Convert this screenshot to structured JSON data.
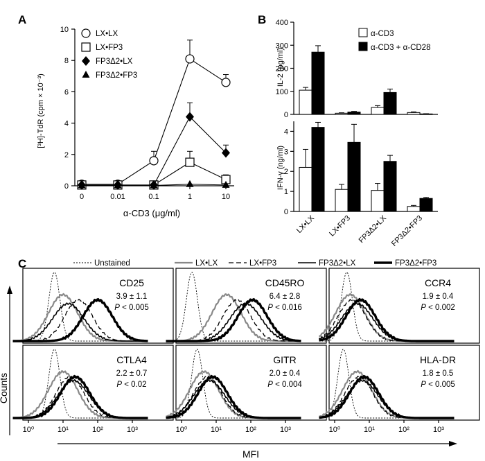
{
  "panelA": {
    "letter": "A",
    "ylabel": "[³H]-TdR (cpm × 10⁻³)",
    "xlabel": "α-CD3 (μg/ml)"
  },
  "panelB": {
    "letter": "B",
    "legend": [
      "α-CD3",
      "α-CD3 + α-CD28"
    ],
    "top_ylabel": "IL-2 (pg/ml)",
    "bottom_ylabel": "IFN-γ (ng/ml)"
  },
  "panelC": {
    "letter": "C",
    "legend": [
      "Unstained",
      "LX•LX",
      "LX•FP3",
      "FP3Δ2•LX",
      "FP3Δ2•FP3"
    ],
    "ylabel": "Counts",
    "xlabel": "MFI",
    "histograms": [
      {
        "marker": "CD25",
        "stat": "3.9 ± 1.1",
        "p_prefix": "P",
        "p_value": " < 0.005"
      },
      {
        "marker": "CD45RO",
        "stat": "6.4 ± 2.8",
        "p_prefix": "P",
        "p_value": " < 0.016"
      },
      {
        "marker": "CCR4",
        "stat": "1.9 ± 0.4",
        "p_prefix": "P",
        "p_value": " < 0.002"
      },
      {
        "marker": "CTLA4",
        "stat": "2.2 ± 0.7",
        "p_prefix": "P",
        "p_value": " < 0.02"
      },
      {
        "marker": "GITR",
        "stat": "2.0 ± 0.4",
        "p_prefix": "P",
        "p_value": " < 0.004"
      },
      {
        "marker": "HLA-DR",
        "stat": "1.8 ± 0.5",
        "p_prefix": "P",
        "p_value": " < 0.005"
      }
    ]
  },
  "chart_data": [
    {
      "id": "A",
      "type": "line",
      "xlabel": "α-CD3 (μg/ml)",
      "ylabel": "[³H]-TdR (cpm × 10⁻³)",
      "x": [
        "0",
        "0.01",
        "0.1",
        "1",
        "10"
      ],
      "ylim": [
        0,
        10
      ],
      "yticks": [
        0,
        2,
        4,
        6,
        8,
        10
      ],
      "legend_position": "top-left",
      "series": [
        {
          "name": "LX•LX",
          "marker": "open-circle",
          "values": [
            0.1,
            0.1,
            1.6,
            8.1,
            6.6
          ],
          "errors": [
            0.1,
            0.1,
            0.6,
            1.2,
            0.5
          ]
        },
        {
          "name": "LX•FP3",
          "marker": "open-square",
          "values": [
            0.05,
            0.05,
            0.05,
            1.5,
            0.4
          ],
          "errors": [
            0.05,
            0.05,
            0.05,
            0.7,
            0.3
          ]
        },
        {
          "name": "FP3Δ2•LX",
          "marker": "filled-diamond",
          "values": [
            0.05,
            0.05,
            0.05,
            4.4,
            2.1
          ],
          "errors": [
            0.05,
            0.05,
            0.05,
            0.9,
            0.5
          ]
        },
        {
          "name": "FP3Δ2•FP3",
          "marker": "filled-triangle",
          "values": [
            0.02,
            0.02,
            0.02,
            0.1,
            0.05
          ],
          "errors": [
            0,
            0,
            0,
            0,
            0
          ]
        }
      ]
    },
    {
      "id": "B-IL2",
      "type": "bar",
      "ylabel": "IL-2 (pg/ml)",
      "categories": [
        "LX•LX",
        "LX•FP3",
        "FP3Δ2•LX",
        "FP3Δ2•FP3"
      ],
      "ylim": [
        0,
        400
      ],
      "yticks": [
        0,
        100,
        200,
        300,
        400
      ],
      "legend_position": "top-right",
      "series": [
        {
          "name": "α-CD3",
          "color": "#ffffff",
          "values": [
            105,
            5,
            30,
            8
          ],
          "errors": [
            12,
            2,
            8,
            3
          ]
        },
        {
          "name": "α-CD3 + α-CD28",
          "color": "#000000",
          "values": [
            270,
            10,
            95,
            2
          ],
          "errors": [
            28,
            3,
            15,
            1
          ]
        }
      ]
    },
    {
      "id": "B-IFNg",
      "type": "bar",
      "ylabel": "IFN-γ (ng/ml)",
      "categories": [
        "LX•LX",
        "LX•FP3",
        "FP3Δ2•LX",
        "FP3Δ2•FP3"
      ],
      "ylim": [
        0,
        4.5
      ],
      "yticks": [
        0,
        1,
        2,
        3,
        4
      ],
      "series": [
        {
          "name": "α-CD3",
          "color": "#ffffff",
          "values": [
            2.2,
            1.1,
            1.05,
            0.25
          ],
          "errors": [
            0.9,
            0.25,
            0.35,
            0.05
          ]
        },
        {
          "name": "α-CD3 + α-CD28",
          "color": "#000000",
          "values": [
            4.2,
            3.45,
            2.5,
            0.65
          ],
          "errors": [
            0.25,
            0.9,
            0.3,
            0.05
          ]
        }
      ]
    },
    {
      "id": "C",
      "type": "line",
      "xlabel": "MFI",
      "ylabel": "Counts",
      "x_scale": "log",
      "xlim": [
        1,
        10000
      ],
      "xticks": [
        "10⁰",
        "10¹",
        "10²",
        "10³"
      ],
      "series_styles": {
        "Unstained": "thin-dashed",
        "LX•LX": "gray",
        "LX•FP3": "dashed",
        "FP3Δ2•LX": "black",
        "FP3Δ2•FP3": "thick-black"
      },
      "panels": [
        {
          "marker": "CD25",
          "peak_log10_MFI": {
            "Unstained": 0.75,
            "LX•LX": 1.0,
            "LX•FP3": 1.45,
            "FP3Δ2•LX": 1.15,
            "FP3Δ2•FP3": 2.0
          }
        },
        {
          "marker": "CD45RO",
          "peak_log10_MFI": {
            "Unstained": 0.3,
            "LX•LX": 1.3,
            "LX•FP3": 1.6,
            "FP3Δ2•LX": 1.85,
            "FP3Δ2•FP3": 2.05
          }
        },
        {
          "marker": "CCR4",
          "peak_log10_MFI": {
            "Unstained": 0.35,
            "LX•LX": 0.45,
            "LX•FP3": 0.5,
            "FP3Δ2•LX": 0.65,
            "FP3Δ2•FP3": 0.75
          }
        },
        {
          "marker": "CTLA4",
          "peak_log10_MFI": {
            "Unstained": 0.75,
            "LX•LX": 1.0,
            "LX•FP3": 1.2,
            "FP3Δ2•LX": 1.3,
            "FP3Δ2•FP3": 1.35
          }
        },
        {
          "marker": "GITR",
          "peak_log10_MFI": {
            "Unstained": 0.45,
            "LX•LX": 0.65,
            "LX•FP3": 0.75,
            "FP3Δ2•LX": 0.8,
            "FP3Δ2•FP3": 0.9
          }
        },
        {
          "marker": "HLA-DR",
          "peak_log10_MFI": {
            "Unstained": 0.25,
            "LX•LX": 0.65,
            "LX•FP3": 0.7,
            "FP3Δ2•LX": 0.8,
            "FP3Δ2•FP3": 0.85
          }
        }
      ]
    }
  ]
}
